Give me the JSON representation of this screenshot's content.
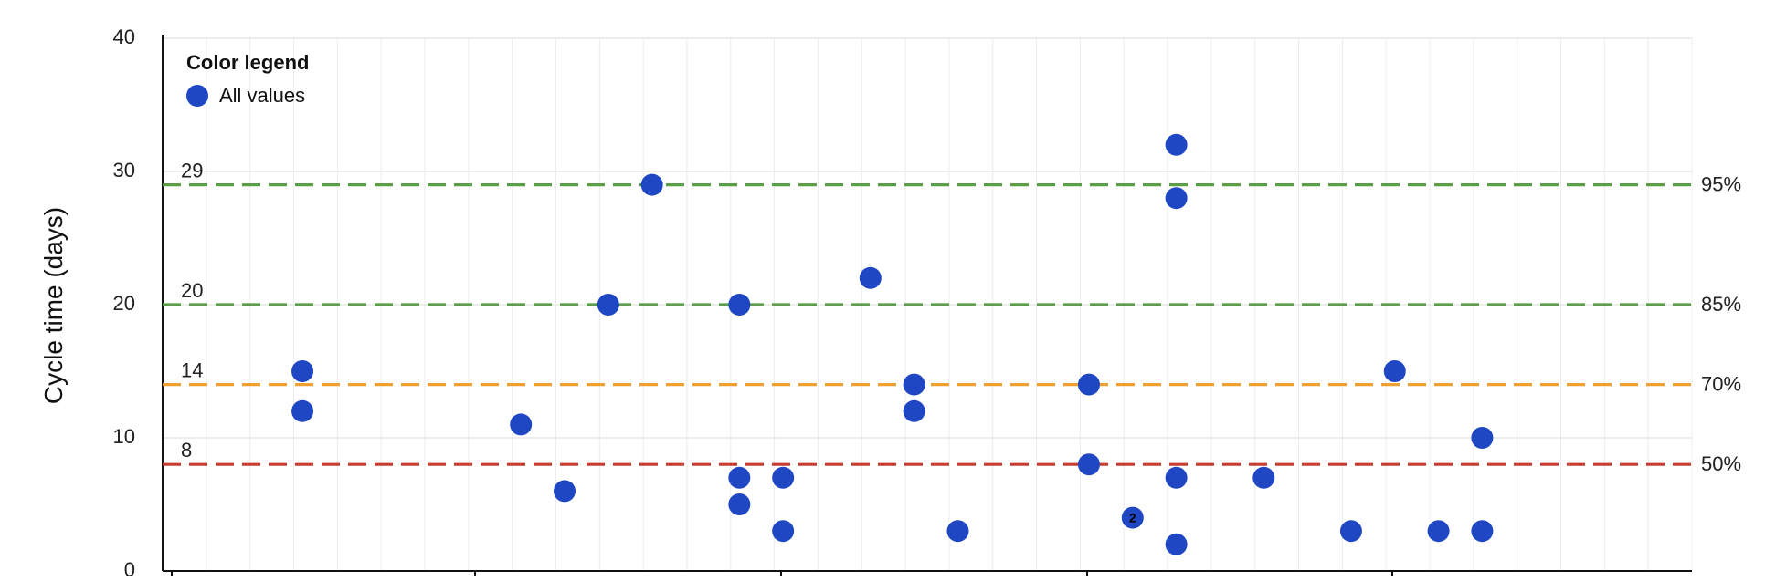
{
  "chart_data": {
    "type": "scatter",
    "title": "",
    "xlabel": "",
    "ylabel": "Cycle time (days)",
    "ylim": [
      0,
      40
    ],
    "yticks": [
      0,
      10,
      20,
      30,
      40
    ],
    "grid": true,
    "legend": {
      "title": "Color legend",
      "placement": "top-left",
      "entries": [
        {
          "label": "All values",
          "color": "#1f47c4"
        }
      ]
    },
    "percentile_lines": [
      {
        "percent": "95%",
        "value": 29,
        "value_label": "29",
        "color": "#5a9e47"
      },
      {
        "percent": "85%",
        "value": 20,
        "value_label": "20",
        "color": "#5a9e47"
      },
      {
        "percent": "70%",
        "value": 14,
        "value_label": "14",
        "color": "#f0a030"
      },
      {
        "percent": "50%",
        "value": 8,
        "value_label": "8",
        "color": "#c83c32"
      }
    ],
    "xlim": [
      -0.2,
      34.8
    ],
    "series": [
      {
        "color": "#1f47c4",
        "points": [
          {
            "x": 3,
            "y": 15
          },
          {
            "x": 3,
            "y": 12
          },
          {
            "x": 8,
            "y": 11
          },
          {
            "x": 9,
            "y": 6
          },
          {
            "x": 10,
            "y": 20
          },
          {
            "x": 11,
            "y": 29
          },
          {
            "x": 13,
            "y": 20
          },
          {
            "x": 13,
            "y": 7
          },
          {
            "x": 13,
            "y": 5
          },
          {
            "x": 14,
            "y": 7
          },
          {
            "x": 14,
            "y": 3
          },
          {
            "x": 16,
            "y": 22
          },
          {
            "x": 17,
            "y": 14
          },
          {
            "x": 17,
            "y": 12
          },
          {
            "x": 18,
            "y": 3
          },
          {
            "x": 21,
            "y": 14
          },
          {
            "x": 21,
            "y": 8
          },
          {
            "x": 22,
            "y": 4,
            "count": "2"
          },
          {
            "x": 23,
            "y": 32
          },
          {
            "x": 23,
            "y": 28
          },
          {
            "x": 23,
            "y": 7
          },
          {
            "x": 23,
            "y": 2
          },
          {
            "x": 25,
            "y": 7
          },
          {
            "x": 27,
            "y": 3
          },
          {
            "x": 28,
            "y": 15
          },
          {
            "x": 29,
            "y": 3
          },
          {
            "x": 30,
            "y": 10
          },
          {
            "x": 30,
            "y": 3
          }
        ]
      }
    ]
  }
}
